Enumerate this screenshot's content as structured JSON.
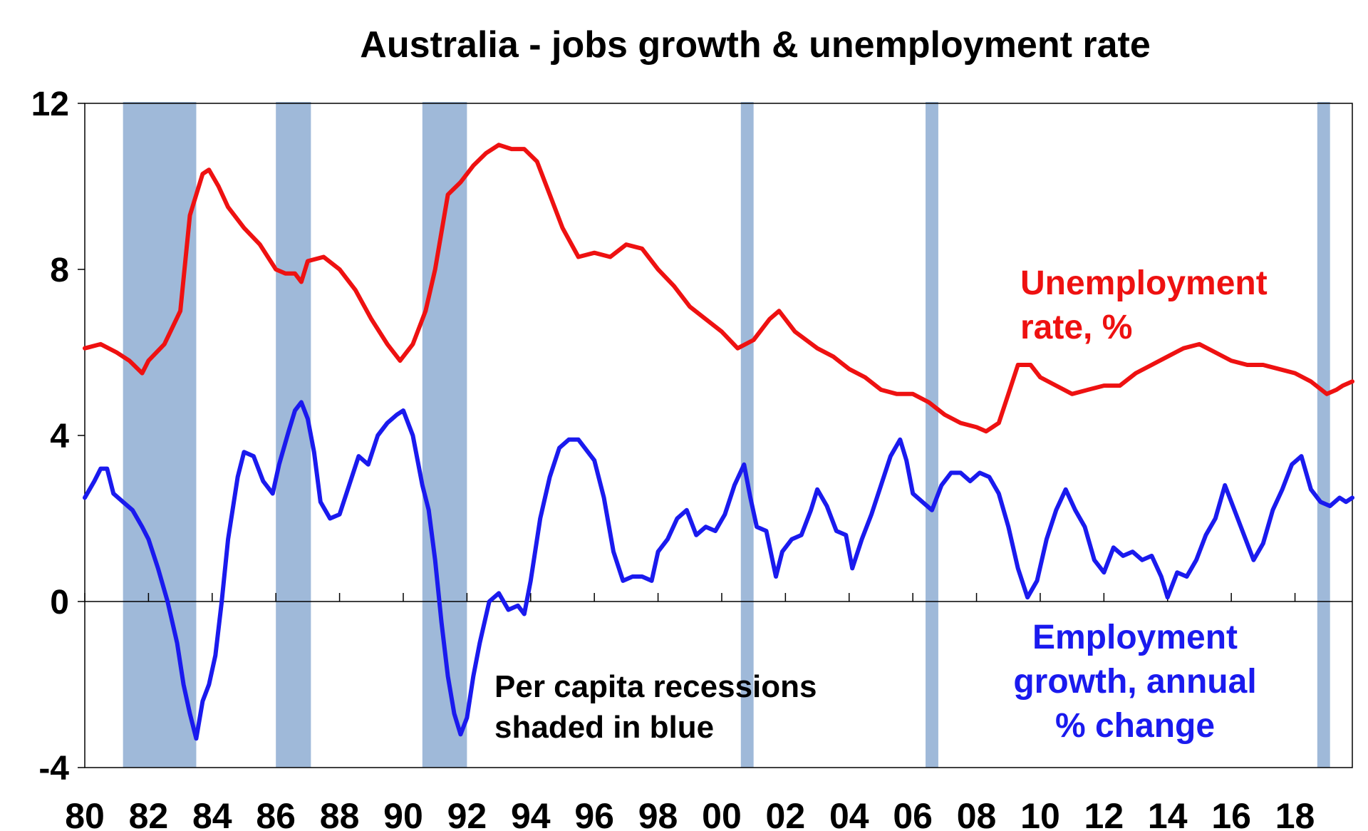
{
  "chart_data": {
    "type": "line",
    "title": "Australia - jobs growth & unemployment rate",
    "x_tick_labels": [
      "80",
      "82",
      "84",
      "86",
      "88",
      "90",
      "92",
      "94",
      "96",
      "98",
      "00",
      "02",
      "04",
      "06",
      "08",
      "10",
      "12",
      "14",
      "16",
      "18"
    ],
    "x_range": [
      1980,
      2019.8
    ],
    "ylim": [
      -4,
      12
    ],
    "y_ticks": [
      12,
      8,
      4,
      0,
      -4
    ],
    "grid": false,
    "recession_shading": {
      "color": "#9fb9d9",
      "periods": [
        [
          1981.2,
          1983.5
        ],
        [
          1986.0,
          1987.1
        ],
        [
          1990.6,
          1992.0
        ],
        [
          2000.6,
          2001.0
        ],
        [
          2006.4,
          2006.8
        ],
        [
          2018.7,
          2019.1
        ]
      ]
    },
    "annotations": {
      "unemployment": [
        "Unemployment",
        "rate, %"
      ],
      "employment": [
        "Employment",
        "growth, annual",
        "% change"
      ],
      "recessions": [
        "Per capita recessions",
        "shaded in blue"
      ]
    },
    "series": [
      {
        "name": "Unemployment rate, %",
        "color": "#ee1111",
        "points": [
          [
            1980.0,
            6.1
          ],
          [
            1980.5,
            6.2
          ],
          [
            1981.0,
            6.0
          ],
          [
            1981.4,
            5.8
          ],
          [
            1981.8,
            5.5
          ],
          [
            1982.0,
            5.8
          ],
          [
            1982.5,
            6.2
          ],
          [
            1983.0,
            7.0
          ],
          [
            1983.3,
            9.3
          ],
          [
            1983.7,
            10.3
          ],
          [
            1983.9,
            10.4
          ],
          [
            1984.2,
            10.0
          ],
          [
            1984.5,
            9.5
          ],
          [
            1985.0,
            9.0
          ],
          [
            1985.5,
            8.6
          ],
          [
            1986.0,
            8.0
          ],
          [
            1986.3,
            7.9
          ],
          [
            1986.6,
            7.9
          ],
          [
            1986.8,
            7.7
          ],
          [
            1987.0,
            8.2
          ],
          [
            1987.5,
            8.3
          ],
          [
            1988.0,
            8.0
          ],
          [
            1988.5,
            7.5
          ],
          [
            1989.0,
            6.8
          ],
          [
            1989.5,
            6.2
          ],
          [
            1989.9,
            5.8
          ],
          [
            1990.3,
            6.2
          ],
          [
            1990.7,
            7.0
          ],
          [
            1991.0,
            8.0
          ],
          [
            1991.4,
            9.8
          ],
          [
            1991.8,
            10.1
          ],
          [
            1992.2,
            10.5
          ],
          [
            1992.6,
            10.8
          ],
          [
            1993.0,
            11.0
          ],
          [
            1993.4,
            10.9
          ],
          [
            1993.8,
            10.9
          ],
          [
            1994.2,
            10.6
          ],
          [
            1994.6,
            9.8
          ],
          [
            1995.0,
            9.0
          ],
          [
            1995.5,
            8.3
          ],
          [
            1996.0,
            8.4
          ],
          [
            1996.5,
            8.3
          ],
          [
            1997.0,
            8.6
          ],
          [
            1997.5,
            8.5
          ],
          [
            1998.0,
            8.0
          ],
          [
            1998.5,
            7.6
          ],
          [
            1999.0,
            7.1
          ],
          [
            1999.5,
            6.8
          ],
          [
            2000.0,
            6.5
          ],
          [
            2000.5,
            6.1
          ],
          [
            2001.0,
            6.3
          ],
          [
            2001.5,
            6.8
          ],
          [
            2001.8,
            7.0
          ],
          [
            2002.3,
            6.5
          ],
          [
            2003.0,
            6.1
          ],
          [
            2003.5,
            5.9
          ],
          [
            2004.0,
            5.6
          ],
          [
            2004.5,
            5.4
          ],
          [
            2005.0,
            5.1
          ],
          [
            2005.5,
            5.0
          ],
          [
            2006.0,
            5.0
          ],
          [
            2006.5,
            4.8
          ],
          [
            2007.0,
            4.5
          ],
          [
            2007.5,
            4.3
          ],
          [
            2008.0,
            4.2
          ],
          [
            2008.3,
            4.1
          ],
          [
            2008.7,
            4.3
          ],
          [
            2009.0,
            5.0
          ],
          [
            2009.3,
            5.7
          ],
          [
            2009.7,
            5.7
          ],
          [
            2010.0,
            5.4
          ],
          [
            2010.5,
            5.2
          ],
          [
            2011.0,
            5.0
          ],
          [
            2011.5,
            5.1
          ],
          [
            2012.0,
            5.2
          ],
          [
            2012.5,
            5.2
          ],
          [
            2013.0,
            5.5
          ],
          [
            2013.5,
            5.7
          ],
          [
            2014.0,
            5.9
          ],
          [
            2014.5,
            6.1
          ],
          [
            2015.0,
            6.2
          ],
          [
            2015.5,
            6.0
          ],
          [
            2016.0,
            5.8
          ],
          [
            2016.5,
            5.7
          ],
          [
            2017.0,
            5.7
          ],
          [
            2017.5,
            5.6
          ],
          [
            2018.0,
            5.5
          ],
          [
            2018.5,
            5.3
          ],
          [
            2019.0,
            5.0
          ],
          [
            2019.3,
            5.1
          ],
          [
            2019.5,
            5.2
          ],
          [
            2019.8,
            5.3
          ]
        ]
      },
      {
        "name": "Employment growth, annual % change",
        "color": "#1a1aee",
        "points": [
          [
            1980.0,
            2.5
          ],
          [
            1980.3,
            2.9
          ],
          [
            1980.5,
            3.2
          ],
          [
            1980.7,
            3.2
          ],
          [
            1980.9,
            2.6
          ],
          [
            1981.2,
            2.4
          ],
          [
            1981.5,
            2.2
          ],
          [
            1981.8,
            1.8
          ],
          [
            1982.0,
            1.5
          ],
          [
            1982.3,
            0.8
          ],
          [
            1982.6,
            0.0
          ],
          [
            1982.9,
            -1.0
          ],
          [
            1983.1,
            -2.0
          ],
          [
            1983.3,
            -2.7
          ],
          [
            1983.5,
            -3.3
          ],
          [
            1983.7,
            -2.4
          ],
          [
            1983.9,
            -2.0
          ],
          [
            1984.1,
            -1.3
          ],
          [
            1984.3,
            0.0
          ],
          [
            1984.5,
            1.5
          ],
          [
            1984.8,
            3.0
          ],
          [
            1985.0,
            3.6
          ],
          [
            1985.3,
            3.5
          ],
          [
            1985.6,
            2.9
          ],
          [
            1985.9,
            2.6
          ],
          [
            1986.1,
            3.3
          ],
          [
            1986.4,
            4.1
          ],
          [
            1986.6,
            4.6
          ],
          [
            1986.8,
            4.8
          ],
          [
            1987.0,
            4.4
          ],
          [
            1987.2,
            3.6
          ],
          [
            1987.4,
            2.4
          ],
          [
            1987.7,
            2.0
          ],
          [
            1988.0,
            2.1
          ],
          [
            1988.3,
            2.8
          ],
          [
            1988.6,
            3.5
          ],
          [
            1988.9,
            3.3
          ],
          [
            1989.2,
            4.0
          ],
          [
            1989.5,
            4.3
          ],
          [
            1989.8,
            4.5
          ],
          [
            1990.0,
            4.6
          ],
          [
            1990.3,
            4.0
          ],
          [
            1990.6,
            2.8
          ],
          [
            1990.8,
            2.2
          ],
          [
            1991.0,
            1.0
          ],
          [
            1991.2,
            -0.5
          ],
          [
            1991.4,
            -1.8
          ],
          [
            1991.6,
            -2.7
          ],
          [
            1991.8,
            -3.2
          ],
          [
            1992.0,
            -2.8
          ],
          [
            1992.2,
            -1.8
          ],
          [
            1992.4,
            -1.0
          ],
          [
            1992.7,
            0.0
          ],
          [
            1993.0,
            0.2
          ],
          [
            1993.3,
            -0.2
          ],
          [
            1993.6,
            -0.1
          ],
          [
            1993.8,
            -0.3
          ],
          [
            1994.0,
            0.5
          ],
          [
            1994.3,
            2.0
          ],
          [
            1994.6,
            3.0
          ],
          [
            1994.9,
            3.7
          ],
          [
            1995.2,
            3.9
          ],
          [
            1995.5,
            3.9
          ],
          [
            1995.8,
            3.6
          ],
          [
            1996.0,
            3.4
          ],
          [
            1996.3,
            2.5
          ],
          [
            1996.6,
            1.2
          ],
          [
            1996.9,
            0.5
          ],
          [
            1997.2,
            0.6
          ],
          [
            1997.5,
            0.6
          ],
          [
            1997.8,
            0.5
          ],
          [
            1998.0,
            1.2
          ],
          [
            1998.3,
            1.5
          ],
          [
            1998.6,
            2.0
          ],
          [
            1998.9,
            2.2
          ],
          [
            1999.2,
            1.6
          ],
          [
            1999.5,
            1.8
          ],
          [
            1999.8,
            1.7
          ],
          [
            2000.1,
            2.1
          ],
          [
            2000.4,
            2.8
          ],
          [
            2000.7,
            3.3
          ],
          [
            2000.9,
            2.5
          ],
          [
            2001.1,
            1.8
          ],
          [
            2001.4,
            1.7
          ],
          [
            2001.7,
            0.6
          ],
          [
            2001.9,
            1.2
          ],
          [
            2002.2,
            1.5
          ],
          [
            2002.5,
            1.6
          ],
          [
            2002.8,
            2.2
          ],
          [
            2003.0,
            2.7
          ],
          [
            2003.3,
            2.3
          ],
          [
            2003.6,
            1.7
          ],
          [
            2003.9,
            1.6
          ],
          [
            2004.1,
            0.8
          ],
          [
            2004.4,
            1.5
          ],
          [
            2004.7,
            2.1
          ],
          [
            2005.0,
            2.8
          ],
          [
            2005.3,
            3.5
          ],
          [
            2005.6,
            3.9
          ],
          [
            2005.8,
            3.4
          ],
          [
            2006.0,
            2.6
          ],
          [
            2006.3,
            2.4
          ],
          [
            2006.6,
            2.2
          ],
          [
            2006.9,
            2.8
          ],
          [
            2007.2,
            3.1
          ],
          [
            2007.5,
            3.1
          ],
          [
            2007.8,
            2.9
          ],
          [
            2008.1,
            3.1
          ],
          [
            2008.4,
            3.0
          ],
          [
            2008.7,
            2.6
          ],
          [
            2009.0,
            1.8
          ],
          [
            2009.3,
            0.8
          ],
          [
            2009.6,
            0.1
          ],
          [
            2009.9,
            0.5
          ],
          [
            2010.2,
            1.5
          ],
          [
            2010.5,
            2.2
          ],
          [
            2010.8,
            2.7
          ],
          [
            2011.1,
            2.2
          ],
          [
            2011.4,
            1.8
          ],
          [
            2011.7,
            1.0
          ],
          [
            2012.0,
            0.7
          ],
          [
            2012.3,
            1.3
          ],
          [
            2012.6,
            1.1
          ],
          [
            2012.9,
            1.2
          ],
          [
            2013.2,
            1.0
          ],
          [
            2013.5,
            1.1
          ],
          [
            2013.8,
            0.6
          ],
          [
            2014.0,
            0.1
          ],
          [
            2014.3,
            0.7
          ],
          [
            2014.6,
            0.6
          ],
          [
            2014.9,
            1.0
          ],
          [
            2015.2,
            1.6
          ],
          [
            2015.5,
            2.0
          ],
          [
            2015.8,
            2.8
          ],
          [
            2016.1,
            2.2
          ],
          [
            2016.4,
            1.6
          ],
          [
            2016.7,
            1.0
          ],
          [
            2017.0,
            1.4
          ],
          [
            2017.3,
            2.2
          ],
          [
            2017.6,
            2.7
          ],
          [
            2017.9,
            3.3
          ],
          [
            2018.2,
            3.5
          ],
          [
            2018.5,
            2.7
          ],
          [
            2018.8,
            2.4
          ],
          [
            2019.1,
            2.3
          ],
          [
            2019.4,
            2.5
          ],
          [
            2019.6,
            2.4
          ],
          [
            2019.8,
            2.5
          ]
        ]
      }
    ]
  }
}
